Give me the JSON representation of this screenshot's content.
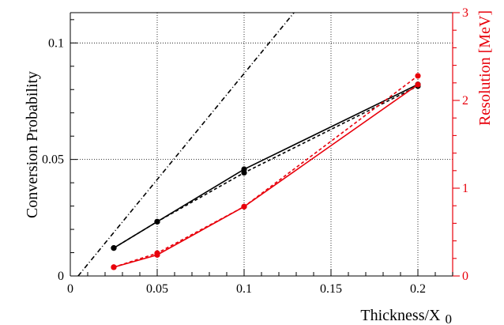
{
  "chart_data": {
    "type": "line",
    "title": "",
    "xlabel": "Thickness/X_0",
    "ylabel_left": "Conversion Probability",
    "ylabel_right": "Resolution [MeV]",
    "xlim": [
      0,
      0.22
    ],
    "ylim_left": [
      0,
      0.113
    ],
    "ylim_right": [
      0,
      3
    ],
    "grid": true,
    "x_ticks": [
      {
        "value": 0,
        "label": "0"
      },
      {
        "value": 0.05,
        "label": "0.05"
      },
      {
        "value": 0.1,
        "label": "0.1"
      },
      {
        "value": 0.15,
        "label": "0.15"
      },
      {
        "value": 0.2,
        "label": "0.2"
      }
    ],
    "y_left_ticks": [
      {
        "value": 0,
        "label": "0"
      },
      {
        "value": 0.05,
        "label": "0.05"
      },
      {
        "value": 0.1,
        "label": "0.1"
      }
    ],
    "y_right_ticks": [
      {
        "value": 0,
        "label": "0"
      },
      {
        "value": 1,
        "label": "1"
      },
      {
        "value": 2,
        "label": "2"
      },
      {
        "value": 3,
        "label": "3"
      }
    ],
    "series": [
      {
        "axis": "left",
        "color": "#000000",
        "style": "solid",
        "markers": true,
        "x": [
          0.025,
          0.05,
          0.1,
          0.2
        ],
        "y": [
          0.012,
          0.0233,
          0.0458,
          0.0822
        ]
      },
      {
        "axis": "left",
        "color": "#000000",
        "style": "dashed",
        "markers": true,
        "x": [
          0.025,
          0.05,
          0.1,
          0.2
        ],
        "y": [
          0.012,
          0.0233,
          0.0443,
          0.0815
        ]
      },
      {
        "axis": "left",
        "color": "#000000",
        "style": "dashdot",
        "markers": false,
        "x": [
          0.0045,
          0.1287
        ],
        "y": [
          0,
          0.113
        ]
      },
      {
        "axis": "right",
        "color": "#e8000b",
        "style": "solid",
        "markers": true,
        "x": [
          0.025,
          0.05,
          0.1,
          0.2
        ],
        "y": [
          0.1,
          0.24,
          0.79,
          2.18
        ]
      },
      {
        "axis": "right",
        "color": "#e8000b",
        "style": "dashed",
        "markers": true,
        "x": [
          0.025,
          0.05,
          0.1,
          0.2
        ],
        "y": [
          0.1,
          0.26,
          0.79,
          2.28
        ]
      }
    ]
  }
}
